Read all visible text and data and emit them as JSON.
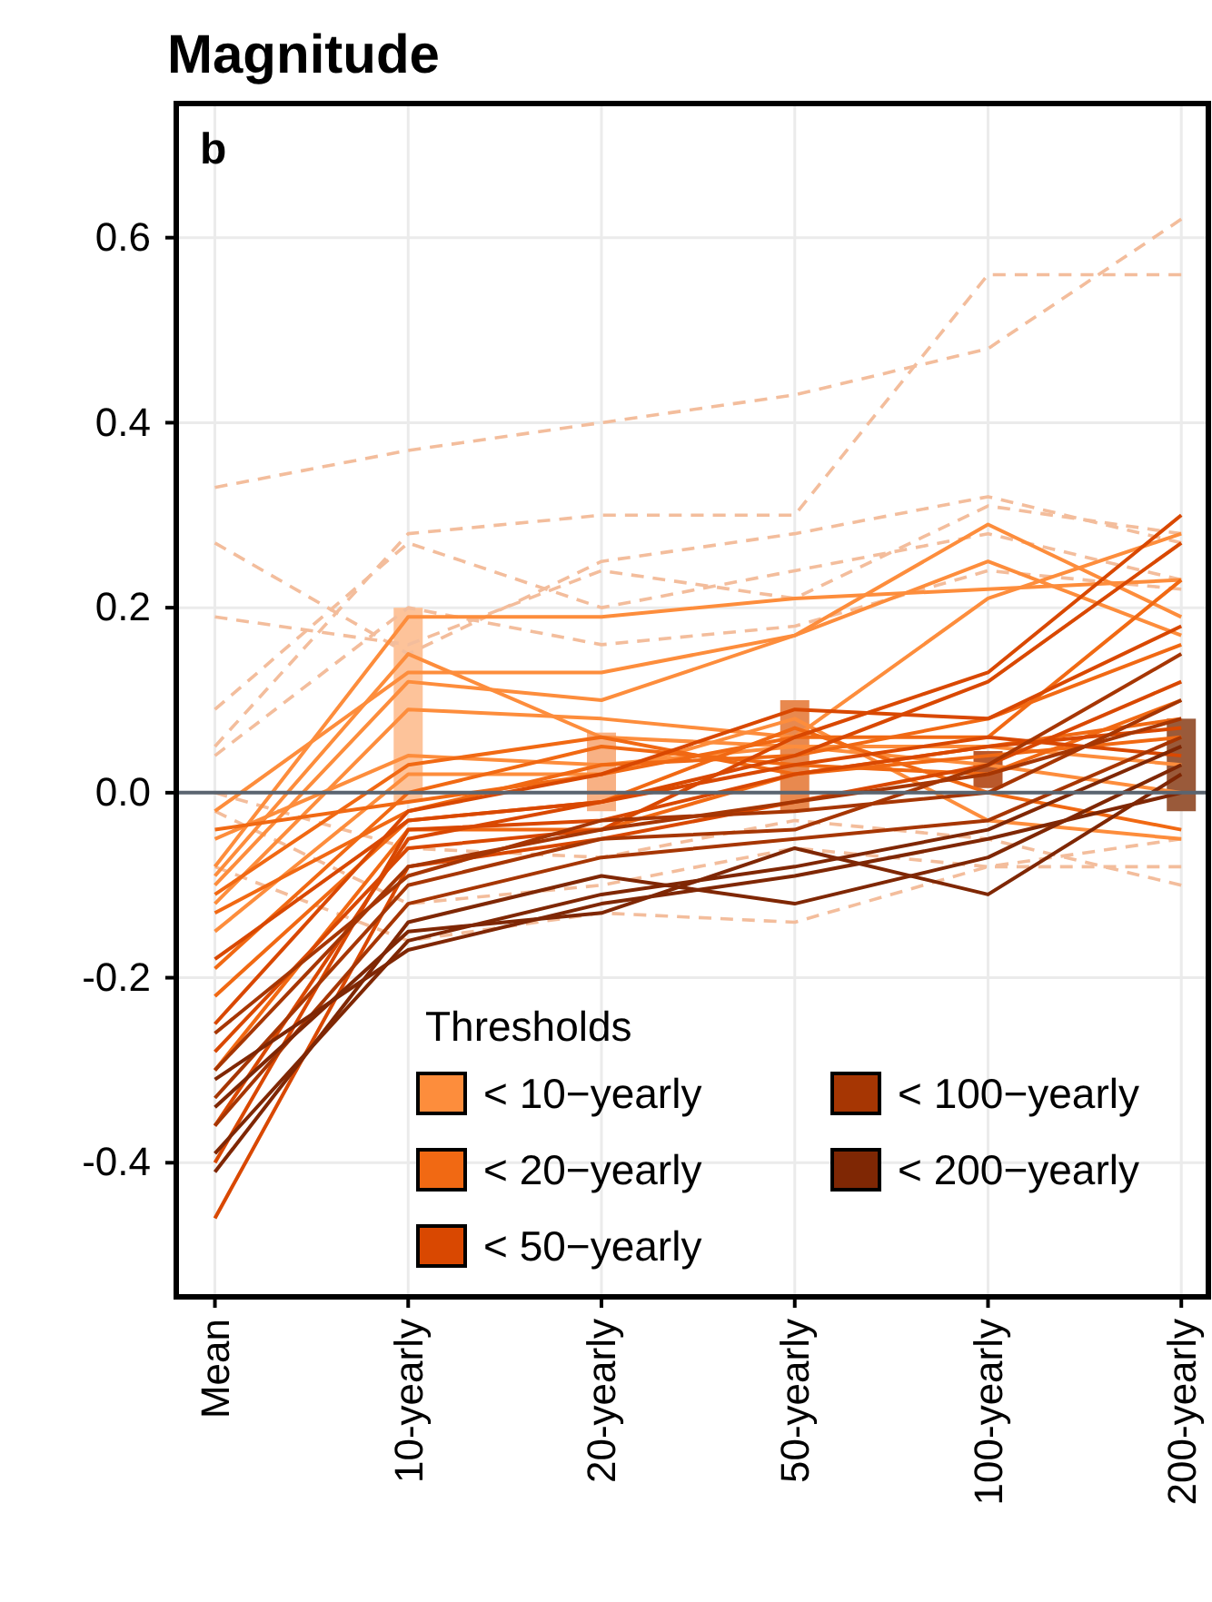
{
  "chart_data": {
    "type": "line",
    "title": "Magnitude",
    "annotations": [
      "b"
    ],
    "categories": [
      "Mean",
      "10-yearly",
      "20-yearly",
      "50-yearly",
      "100-yearly",
      "200-yearly"
    ],
    "ylim": [
      -0.545,
      0.745
    ],
    "yticks": [
      -0.4,
      -0.2,
      {
        "value": 0,
        "label": "0.0"
      },
      0.2,
      0.4,
      0.6
    ],
    "grid": true,
    "legend": "bottom",
    "legend_title": "Thresholds",
    "marker": "none",
    "ref_lines": [
      {
        "axis": "y",
        "value": 0,
        "label": null,
        "color": "#5a6470"
      }
    ],
    "series": [
      {
        "type": "bar",
        "color": "#fdc39a",
        "values": [
          null,
          0.21,
          null,
          null,
          null,
          null
        ],
        "base": [
          null,
          -0.01,
          null,
          null,
          null,
          null
        ]
      },
      {
        "type": "bar",
        "color": "#f8b184",
        "values": [
          null,
          null,
          0.085,
          null,
          null,
          null
        ],
        "base": [
          null,
          null,
          -0.02,
          null,
          null,
          null
        ]
      },
      {
        "type": "bar",
        "color": "#e8894f",
        "values": [
          null,
          null,
          null,
          0.12,
          null,
          null
        ],
        "base": [
          null,
          null,
          null,
          -0.02,
          null,
          null
        ]
      },
      {
        "type": "bar",
        "color": "#b9582b",
        "values": [
          null,
          null,
          null,
          null,
          0.04,
          null
        ],
        "base": [
          null,
          null,
          null,
          null,
          0.005,
          null
        ]
      },
      {
        "type": "bar",
        "color": "#9a5a3a",
        "values": [
          null,
          null,
          null,
          null,
          null,
          0.1
        ],
        "base": [
          null,
          null,
          null,
          null,
          null,
          -0.02
        ]
      },
      {
        "color": "#f3bd9c",
        "line_style": "dashed",
        "values": [
          0.33,
          0.37,
          0.4,
          0.43,
          0.48,
          0.62
        ]
      },
      {
        "color": "#f3bd9c",
        "line_style": "dashed",
        "values": [
          0.05,
          0.28,
          0.3,
          0.3,
          0.56,
          0.56
        ]
      },
      {
        "color": "#f3bd9c",
        "line_style": "dashed",
        "values": [
          0.27,
          0.15,
          0.25,
          0.28,
          0.32,
          0.27
        ]
      },
      {
        "color": "#f3bd9c",
        "line_style": "dashed",
        "values": [
          0.19,
          0.16,
          0.24,
          0.21,
          0.31,
          0.28
        ]
      },
      {
        "color": "#f3bd9c",
        "line_style": "dashed",
        "values": [
          0.09,
          0.27,
          0.2,
          0.24,
          0.28,
          0.23
        ]
      },
      {
        "color": "#f3bd9c",
        "line_style": "dashed",
        "values": [
          0.04,
          0.2,
          0.16,
          0.18,
          0.24,
          0.22
        ]
      },
      {
        "color": "#f3bd9c",
        "line_style": "dashed",
        "values": [
          -0.02,
          -0.12,
          -0.1,
          -0.06,
          -0.08,
          -0.05
        ]
      },
      {
        "color": "#f3bd9c",
        "line_style": "dashed",
        "values": [
          -0.08,
          -0.16,
          -0.13,
          -0.14,
          -0.08,
          -0.08
        ]
      },
      {
        "color": "#f3bd9c",
        "line_style": "dashed",
        "values": [
          0,
          -0.06,
          -0.07,
          -0.03,
          -0.05,
          -0.1
        ]
      },
      {
        "name": "< 10−yearly",
        "color": "#fd8d3c",
        "values": [
          -0.02,
          0.13,
          0.13,
          0.17,
          0.29,
          0.19
        ]
      },
      {
        "color": "#fd8d3c",
        "values": [
          -0.08,
          0.19,
          0.19,
          0.21,
          0.22,
          0.23
        ]
      },
      {
        "color": "#fd8d3c",
        "values": [
          -0.1,
          0.12,
          0.1,
          0.17,
          0.25,
          0.17
        ]
      },
      {
        "color": "#fd8d3c",
        "values": [
          -0.12,
          0.09,
          0.08,
          0.06,
          0.21,
          0.28
        ]
      },
      {
        "color": "#fd8d3c",
        "values": [
          -0.05,
          0.04,
          0.03,
          0.05,
          0.05,
          0.03
        ]
      },
      {
        "color": "#fd8d3c",
        "values": [
          -0.15,
          0.02,
          0.02,
          0.08,
          -0.03,
          -0.05
        ]
      },
      {
        "color": "#fd8d3c",
        "values": [
          -0.09,
          0.15,
          0.06,
          0.05,
          0.03,
          0
        ]
      },
      {
        "name": "< 20−yearly",
        "color": "#f16913",
        "values": [
          -0.04,
          -0.01,
          0.02,
          0.06,
          0.06,
          0.23
        ]
      },
      {
        "color": "#f16913",
        "values": [
          -0.13,
          -0.02,
          0.03,
          0.04,
          0.08,
          0.16
        ]
      },
      {
        "color": "#f16913",
        "values": [
          -0.19,
          0,
          0.05,
          0.03,
          0.02,
          0.1
        ]
      },
      {
        "color": "#f16913",
        "values": [
          -0.22,
          -0.03,
          -0.01,
          0.07,
          0,
          -0.04
        ]
      },
      {
        "color": "#f16913",
        "values": [
          -0.11,
          0.03,
          0.06,
          0.02,
          0.05,
          0.08
        ]
      },
      {
        "color": "#f16913",
        "values": [
          -0.3,
          -0.04,
          -0.04,
          0.02,
          0.04,
          0.06
        ]
      },
      {
        "name": "< 50−yearly",
        "color": "#d94801",
        "values": [
          -0.28,
          -0.06,
          -0.04,
          0.06,
          0.13,
          0.3
        ]
      },
      {
        "color": "#d94801",
        "values": [
          -0.36,
          -0.05,
          -0.01,
          0.04,
          0.12,
          0.27
        ]
      },
      {
        "color": "#d94801",
        "values": [
          -0.25,
          -0.02,
          0.02,
          0.09,
          0.08,
          0.18
        ]
      },
      {
        "color": "#d94801",
        "values": [
          -0.46,
          -0.08,
          -0.05,
          -0.01,
          0.03,
          0.12
        ]
      },
      {
        "color": "#d94801",
        "values": [
          -0.4,
          -0.04,
          -0.03,
          0.02,
          0.05,
          0.07
        ]
      },
      {
        "color": "#d94801",
        "values": [
          -0.18,
          -0.03,
          -0.01,
          0.03,
          0.06,
          0.04
        ]
      },
      {
        "name": "< 100−yearly",
        "color": "#a63603",
        "values": [
          -0.33,
          -0.1,
          -0.05,
          -0.04,
          0.03,
          0.15
        ]
      },
      {
        "color": "#a63603",
        "values": [
          -0.26,
          -0.09,
          -0.03,
          -0.02,
          0,
          0.1
        ]
      },
      {
        "color": "#a63603",
        "values": [
          -0.36,
          -0.12,
          -0.07,
          -0.05,
          -0.03,
          0.06
        ]
      },
      {
        "color": "#a63603",
        "values": [
          -0.3,
          -0.08,
          -0.04,
          -0.01,
          0.02,
          0.08
        ]
      },
      {
        "name": "< 200−yearly",
        "color": "#7f2704",
        "values": [
          -0.34,
          -0.15,
          -0.13,
          -0.06,
          -0.11,
          0.02
        ]
      },
      {
        "color": "#7f2704",
        "values": [
          -0.39,
          -0.16,
          -0.11,
          -0.08,
          -0.04,
          0.05
        ]
      },
      {
        "color": "#7f2704",
        "values": [
          -0.31,
          -0.17,
          -0.12,
          -0.09,
          -0.05,
          0
        ]
      },
      {
        "color": "#7f2704",
        "values": [
          -0.41,
          -0.14,
          -0.09,
          -0.12,
          -0.07,
          0.03
        ]
      }
    ]
  }
}
